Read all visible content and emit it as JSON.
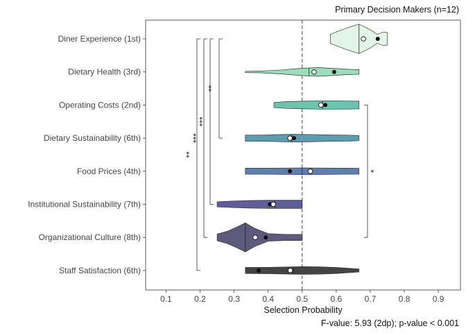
{
  "chart_data": {
    "type": "violin",
    "title": "Primary Decision Makers (n=12)",
    "caption": "F-value: 5.93 (2dp); p-value < 0.001",
    "xlabel": "Selection Probability",
    "ylabel": "",
    "xlim": [
      0.04,
      0.965
    ],
    "xticks": [
      0.1,
      0.2,
      0.3,
      0.4,
      0.5,
      0.6,
      0.7,
      0.8,
      0.9
    ],
    "xtick_labels": [
      "0.1",
      "0.2",
      "0.3",
      "0.4",
      "0.5",
      "0.6",
      "0.7",
      "0.8",
      "0.9"
    ],
    "reference_line": 0.5,
    "grid": false,
    "legend": "none",
    "categories": [
      {
        "label": "Diner Experience (1st)",
        "color": "#e3f5e5",
        "min": 0.583,
        "max": 0.75,
        "median": 0.667,
        "mean": 0.722,
        "point_open": 0.68,
        "profile": [
          [
            0.583,
            0.3
          ],
          [
            0.6,
            0.45
          ],
          [
            0.63,
            0.7
          ],
          [
            0.667,
            0.97
          ],
          [
            0.7,
            0.6
          ],
          [
            0.72,
            0.3
          ],
          [
            0.74,
            0.45
          ],
          [
            0.75,
            0.4
          ]
        ]
      },
      {
        "label": "Dietary Health (3rd)",
        "color": "#9dddb9",
        "min": 0.333,
        "max": 0.667,
        "median": 0.52,
        "mean": 0.594,
        "point_open": 0.535,
        "profile": [
          [
            0.333,
            0.04
          ],
          [
            0.38,
            0.06
          ],
          [
            0.44,
            0.13
          ],
          [
            0.5,
            0.24
          ],
          [
            0.55,
            0.28
          ],
          [
            0.6,
            0.22
          ],
          [
            0.64,
            0.17
          ],
          [
            0.667,
            0.15
          ]
        ]
      },
      {
        "label": "Operating Costs (2nd)",
        "color": "#6cc3ae",
        "min": 0.417,
        "max": 0.667,
        "median": 0.56,
        "mean": 0.568,
        "point_open": 0.555,
        "profile": [
          [
            0.417,
            0.17
          ],
          [
            0.45,
            0.22
          ],
          [
            0.5,
            0.25
          ],
          [
            0.55,
            0.27
          ],
          [
            0.6,
            0.27
          ],
          [
            0.64,
            0.26
          ],
          [
            0.667,
            0.25
          ]
        ]
      },
      {
        "label": "Dietary Sustainability (6th)",
        "color": "#5b9cae",
        "min": 0.333,
        "max": 0.667,
        "median": 0.47,
        "mean": 0.476,
        "point_open": 0.464,
        "profile": [
          [
            0.333,
            0.2
          ],
          [
            0.38,
            0.2
          ],
          [
            0.43,
            0.23
          ],
          [
            0.47,
            0.25
          ],
          [
            0.52,
            0.24
          ],
          [
            0.58,
            0.21
          ],
          [
            0.63,
            0.2
          ],
          [
            0.667,
            0.17
          ]
        ]
      },
      {
        "label": "Food Prices (4th)",
        "color": "#5e7fb0",
        "min": 0.333,
        "max": 0.667,
        "median": 0.5,
        "mean": 0.464,
        "point_open": 0.524,
        "profile": [
          [
            0.333,
            0.2
          ],
          [
            0.4,
            0.2
          ],
          [
            0.46,
            0.21
          ],
          [
            0.5,
            0.22
          ],
          [
            0.56,
            0.21
          ],
          [
            0.62,
            0.2
          ],
          [
            0.667,
            0.19
          ]
        ]
      },
      {
        "label": "Institutional Sustainability (7th)",
        "color": "#5f5d9c",
        "min": 0.25,
        "max": 0.5,
        "median": 0.42,
        "mean": 0.405,
        "point_open": 0.415,
        "profile": [
          [
            0.25,
            0.17
          ],
          [
            0.3,
            0.22
          ],
          [
            0.35,
            0.25
          ],
          [
            0.4,
            0.27
          ],
          [
            0.45,
            0.27
          ],
          [
            0.5,
            0.27
          ]
        ]
      },
      {
        "label": "Organizational Culture (8th)",
        "color": "#5d5a7e",
        "min": 0.25,
        "max": 0.5,
        "median": 0.333,
        "mean": 0.393,
        "point_open": 0.362,
        "profile": [
          [
            0.25,
            0.22
          ],
          [
            0.28,
            0.4
          ],
          [
            0.31,
            0.7
          ],
          [
            0.333,
            0.95
          ],
          [
            0.36,
            0.6
          ],
          [
            0.4,
            0.25
          ],
          [
            0.45,
            0.2
          ],
          [
            0.5,
            0.2
          ]
        ]
      },
      {
        "label": "Staff Satisfaction (6th)",
        "color": "#444444",
        "min": 0.333,
        "max": 0.667,
        "median": 0.475,
        "mean": 0.372,
        "point_open": 0.465,
        "profile": [
          [
            0.333,
            0.2
          ],
          [
            0.4,
            0.21
          ],
          [
            0.45,
            0.23
          ],
          [
            0.5,
            0.25
          ],
          [
            0.55,
            0.24
          ],
          [
            0.6,
            0.2
          ],
          [
            0.667,
            0.1
          ]
        ]
      }
    ],
    "annotations": [
      {
        "text": "**",
        "from": "Diner Experience (1st)",
        "to": "Dietary Sustainability (6th)",
        "side": "left"
      },
      {
        "text": "***",
        "from": "Diner Experience (1st)",
        "to": "Institutional Sustainability (7th)",
        "side": "left"
      },
      {
        "text": "***",
        "from": "Diner Experience (1st)",
        "to": "Organizational Culture (8th)",
        "side": "left"
      },
      {
        "text": "**",
        "from": "Diner Experience (1st)",
        "to": "Staff Satisfaction (6th)",
        "side": "left"
      },
      {
        "text": "*",
        "from": "Operating Costs (2nd)",
        "to": "Organizational Culture (8th)",
        "side": "right"
      }
    ]
  }
}
